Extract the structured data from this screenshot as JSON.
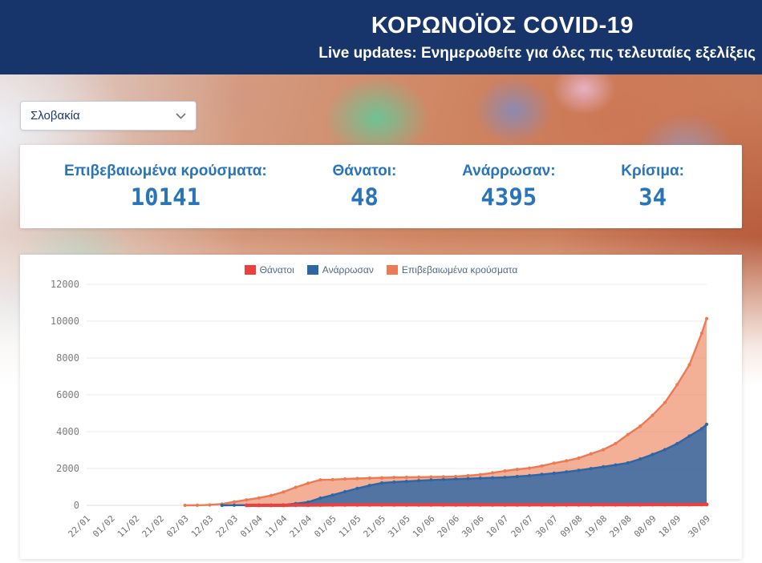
{
  "header": {
    "title": "ΚΟΡΩΝΟΪΟΣ COVID-19",
    "subtitle": "Live updates: Ενημερωθείτε για όλες πις τελευταίες εξελίξεις"
  },
  "country_select": {
    "value": "Σλοβακία",
    "chevron_icon": "chevron-down"
  },
  "stats": [
    {
      "label": "Επιβεβαιωμένα κρούσματα:",
      "value": "10141"
    },
    {
      "label": "Θάνατοι:",
      "value": "48"
    },
    {
      "label": "Ανάρρωσαν:",
      "value": "4395"
    },
    {
      "label": "Κρίσιμα:",
      "value": "34"
    }
  ],
  "chart_data": {
    "type": "area",
    "title": "",
    "xlabel": "",
    "ylabel": "",
    "ylim": [
      0,
      12000
    ],
    "yticks": [
      0,
      2000,
      4000,
      6000,
      8000,
      10000,
      12000
    ],
    "grid": "horizontal",
    "legend_position": "top",
    "x_unit": "days since 22/01/2020",
    "x_max": 252,
    "xticks": [
      {
        "label": "22/01",
        "day": 0
      },
      {
        "label": "01/02",
        "day": 10
      },
      {
        "label": "11/02",
        "day": 20
      },
      {
        "label": "21/02",
        "day": 30
      },
      {
        "label": "02/03",
        "day": 40
      },
      {
        "label": "12/03",
        "day": 50
      },
      {
        "label": "22/03",
        "day": 60
      },
      {
        "label": "01/04",
        "day": 70
      },
      {
        "label": "11/04",
        "day": 80
      },
      {
        "label": "21/04",
        "day": 90
      },
      {
        "label": "01/05",
        "day": 100
      },
      {
        "label": "11/05",
        "day": 110
      },
      {
        "label": "21/05",
        "day": 120
      },
      {
        "label": "31/05",
        "day": 130
      },
      {
        "label": "10/06",
        "day": 140
      },
      {
        "label": "20/06",
        "day": 150
      },
      {
        "label": "30/06",
        "day": 160
      },
      {
        "label": "10/07",
        "day": 170
      },
      {
        "label": "20/07",
        "day": 180
      },
      {
        "label": "30/07",
        "day": 190
      },
      {
        "label": "09/08",
        "day": 200
      },
      {
        "label": "19/08",
        "day": 210
      },
      {
        "label": "29/08",
        "day": 220
      },
      {
        "label": "08/09",
        "day": 230
      },
      {
        "label": "18/09",
        "day": 240
      },
      {
        "label": "30/09",
        "day": 252
      }
    ],
    "days": [
      0,
      5,
      10,
      15,
      20,
      25,
      30,
      35,
      40,
      45,
      50,
      55,
      60,
      65,
      70,
      75,
      80,
      85,
      90,
      95,
      100,
      105,
      110,
      115,
      120,
      125,
      130,
      135,
      140,
      145,
      150,
      155,
      160,
      165,
      170,
      175,
      180,
      185,
      190,
      195,
      200,
      205,
      210,
      215,
      220,
      225,
      230,
      235,
      240,
      245,
      250,
      252
    ],
    "series": [
      {
        "name": "Θάνατοι",
        "color": "#ee3f3f",
        "fill": "none",
        "line_width": 4,
        "point_radius": 2.4,
        "values": [
          0,
          0,
          0,
          0,
          0,
          0,
          0,
          0,
          0,
          0,
          0,
          0,
          0,
          0,
          1,
          2,
          2,
          9,
          14,
          18,
          23,
          25,
          26,
          27,
          28,
          28,
          28,
          28,
          28,
          28,
          28,
          28,
          28,
          28,
          28,
          28,
          28,
          28,
          28,
          29,
          29,
          31,
          33,
          33,
          33,
          36,
          37,
          38,
          39,
          41,
          44,
          48
        ]
      },
      {
        "name": "Ανάρρωσαν",
        "color": "#2d66a5",
        "fill": "rgba(45,102,165,0.82)",
        "line_width": 2.4,
        "point_radius": 2.1,
        "values": [
          0,
          0,
          0,
          0,
          0,
          0,
          0,
          0,
          0,
          0,
          0,
          0,
          7,
          9,
          11,
          15,
          23,
          96,
          175,
          392,
          558,
          741,
          919,
          1079,
          1214,
          1262,
          1298,
          1339,
          1374,
          1402,
          1428,
          1447,
          1473,
          1495,
          1519,
          1564,
          1615,
          1677,
          1743,
          1817,
          1902,
          1997,
          2097,
          2193,
          2303,
          2517,
          2762,
          3022,
          3347,
          3760,
          4163,
          4395
        ]
      },
      {
        "name": "Επιβεβαιωμένα κρούσματα",
        "color": "#ec7a52",
        "fill": "rgba(236,122,82,0.6)",
        "line_width": 2.4,
        "point_radius": 2.1,
        "values": [
          0,
          0,
          0,
          0,
          0,
          0,
          0,
          0,
          0,
          5,
          21,
          72,
          185,
          295,
          400,
          534,
          728,
          977,
          1199,
          1381,
          1396,
          1429,
          1457,
          1480,
          1495,
          1513,
          1521,
          1531,
          1541,
          1552,
          1562,
          1607,
          1667,
          1764,
          1870,
          1951,
          2021,
          2141,
          2292,
          2417,
          2566,
          2801,
          3022,
          3356,
          3842,
          4300,
          4888,
          5580,
          6546,
          7629,
          9343,
          10141
        ]
      }
    ]
  }
}
